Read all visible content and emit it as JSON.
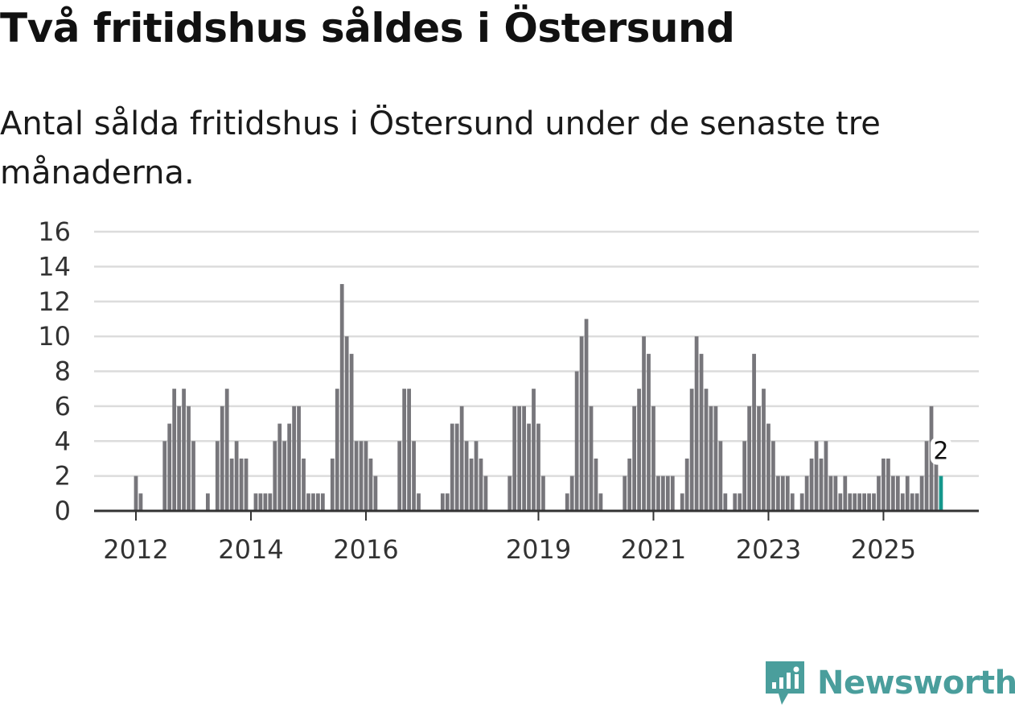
{
  "title": "Två fritidshus såldes i Östersund",
  "subtitle": "Antal sålda fritidshus i Östersund under de senaste tre månaderna.",
  "brand": {
    "name": "Newsworthy",
    "icon": "chart-bubble-icon",
    "color": "#4a9e9c"
  },
  "colors": {
    "bar": "#77767b",
    "highlight": "#15978c",
    "grid": "#dcdcdc",
    "axis": "#333333"
  },
  "chart_data": {
    "type": "bar",
    "title": "Två fritidshus såldes i Östersund",
    "xlabel": "",
    "ylabel": "",
    "ylim": [
      0,
      16
    ],
    "yticks": [
      "0",
      "2",
      "4",
      "6",
      "8",
      "10",
      "12",
      "14",
      "16"
    ],
    "grid": true,
    "xticks": [
      {
        "label": "2012",
        "month_index": 0
      },
      {
        "label": "2014",
        "month_index": 24
      },
      {
        "label": "2016",
        "month_index": 48
      },
      {
        "label": "2019",
        "month_index": 84
      },
      {
        "label": "2021",
        "month_index": 108
      },
      {
        "label": "2023",
        "month_index": 132
      },
      {
        "label": "2025",
        "month_index": 156
      }
    ],
    "start_month": "2012-01",
    "values": [
      2,
      1,
      0,
      0,
      0,
      0,
      4,
      5,
      7,
      6,
      7,
      6,
      4,
      0,
      0,
      1,
      0,
      4,
      6,
      7,
      3,
      4,
      3,
      3,
      0,
      1,
      1,
      1,
      1,
      4,
      5,
      4,
      5,
      6,
      6,
      3,
      1,
      1,
      1,
      1,
      0,
      3,
      7,
      13,
      10,
      9,
      4,
      4,
      4,
      3,
      2,
      0,
      0,
      0,
      0,
      4,
      7,
      7,
      4,
      1,
      0,
      0,
      0,
      0,
      1,
      1,
      5,
      5,
      6,
      4,
      3,
      4,
      3,
      2,
      0,
      0,
      0,
      0,
      2,
      6,
      6,
      6,
      5,
      7,
      5,
      2,
      0,
      0,
      0,
      0,
      1,
      2,
      8,
      10,
      11,
      6,
      3,
      1,
      0,
      0,
      0,
      0,
      2,
      3,
      6,
      7,
      10,
      9,
      6,
      2,
      2,
      2,
      2,
      0,
      1,
      3,
      7,
      10,
      9,
      7,
      6,
      6,
      4,
      1,
      0,
      1,
      1,
      4,
      6,
      9,
      6,
      7,
      5,
      4,
      2,
      2,
      2,
      1,
      0,
      1,
      2,
      3,
      4,
      3,
      4,
      2,
      2,
      1,
      2,
      1,
      1,
      1,
      1,
      1,
      1,
      2,
      3,
      3,
      2,
      2,
      1,
      2,
      1,
      1,
      2,
      4,
      6,
      3,
      2
    ],
    "highlight_index": 168,
    "annotation": {
      "index": 168,
      "label": "2"
    }
  }
}
